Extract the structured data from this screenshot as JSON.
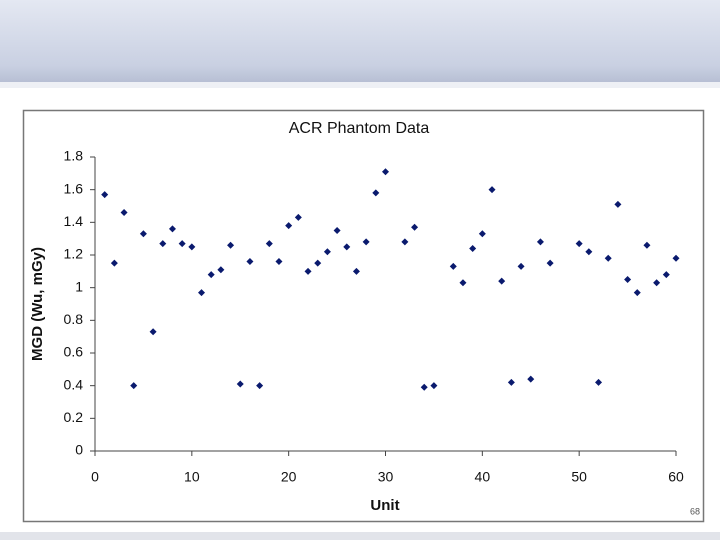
{
  "chart_data": {
    "type": "scatter",
    "title": "ACR Phantom Data",
    "x_label": "Unit",
    "y_label": "MGD (Wu, mGy)",
    "series": [
      {
        "color": "#0a1a6e",
        "x": [
          1,
          2,
          3,
          4,
          5,
          6,
          7,
          8,
          9,
          10,
          11,
          12,
          13,
          14,
          15,
          16,
          17,
          18,
          19,
          20,
          21,
          22,
          23,
          24,
          25,
          26,
          27,
          28,
          29,
          30,
          32,
          33,
          34,
          35,
          37,
          38,
          39,
          40,
          41,
          42,
          43,
          44,
          45,
          46,
          47,
          50,
          51,
          52,
          53,
          54,
          55,
          56,
          57,
          58,
          59,
          60
        ],
        "values": [
          1.57,
          1.15,
          1.46,
          0.4,
          1.33,
          0.73,
          1.27,
          1.36,
          1.27,
          1.25,
          0.97,
          1.08,
          1.11,
          1.26,
          0.41,
          1.16,
          0.4,
          1.27,
          1.16,
          1.38,
          1.43,
          1.1,
          1.15,
          1.22,
          1.35,
          1.25,
          1.1,
          1.28,
          1.58,
          1.71,
          1.28,
          1.37,
          0.39,
          0.4,
          1.13,
          1.03,
          1.24,
          1.33,
          1.6,
          1.04,
          0.42,
          1.13,
          0.44,
          1.28,
          1.15,
          1.27,
          1.22,
          0.42,
          1.18,
          1.51,
          1.05,
          0.97,
          1.26,
          1.03,
          1.08,
          1.18
        ]
      }
    ],
    "xlim": [
      0,
      60
    ],
    "xticks": [
      0,
      10,
      20,
      30,
      40,
      50,
      60
    ],
    "ylim": [
      0,
      1.8
    ],
    "yticks": [
      0,
      0.2,
      0.4,
      0.6,
      0.8,
      1,
      1.2,
      1.4,
      1.6,
      1.8
    ],
    "grid": false
  },
  "slide": {
    "number": "68"
  }
}
